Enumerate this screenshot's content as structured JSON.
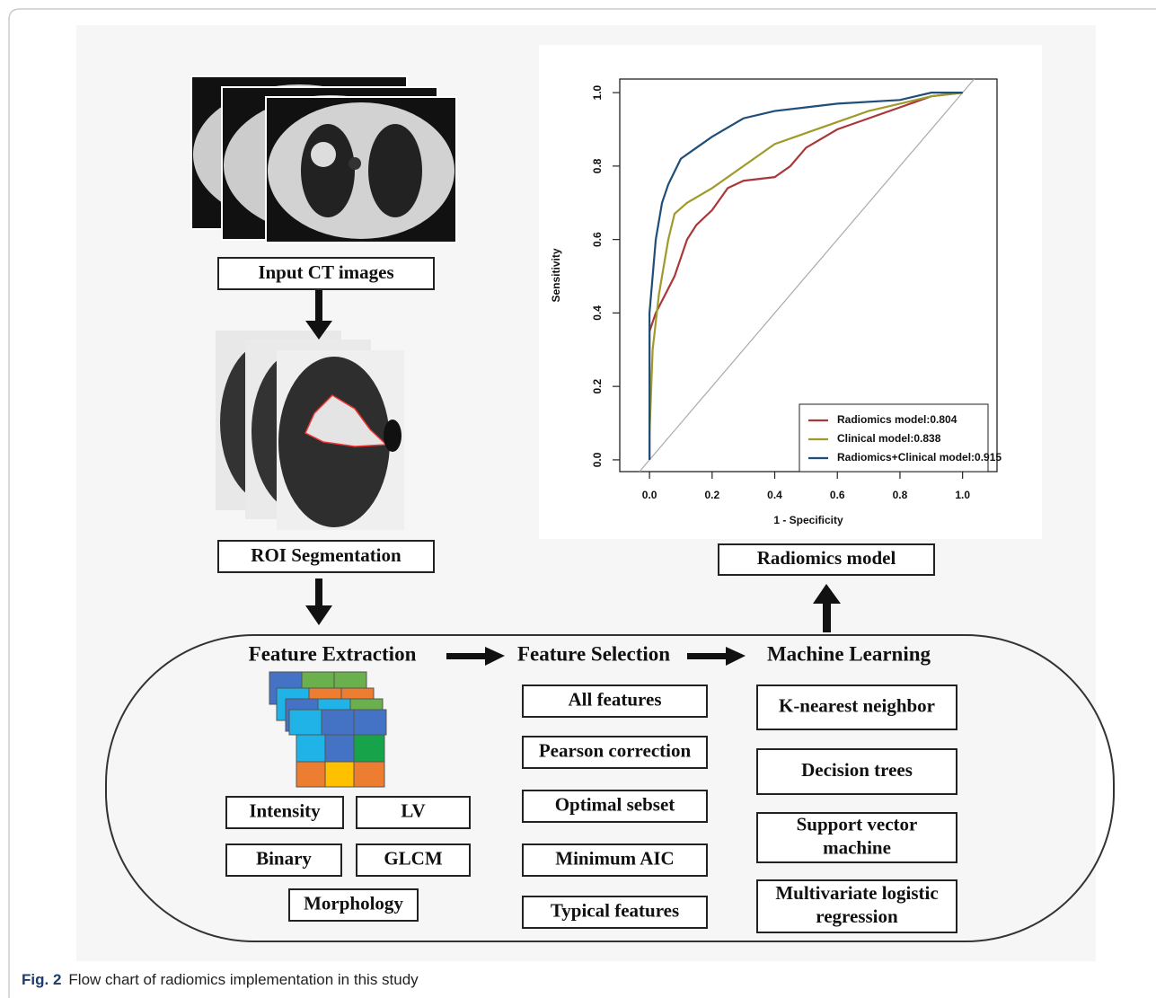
{
  "steps": {
    "input": "Input CT images",
    "roi": "ROI Segmentation",
    "model": "Radiomics model"
  },
  "feature_extraction": {
    "title": "Feature Extraction",
    "items": [
      "Intensity",
      "LV",
      "Binary",
      "GLCM",
      "Morphology"
    ]
  },
  "feature_selection": {
    "title": "Feature Selection",
    "items": [
      "All features",
      "Pearson correction",
      "Optimal sebset",
      "Minimum AIC",
      "Typical features"
    ]
  },
  "machine_learning": {
    "title": "Machine Learning",
    "items": [
      [
        "K-nearest neighbor"
      ],
      [
        "Decision trees"
      ],
      [
        "Support vector",
        "machine"
      ],
      [
        "Multivariate logistic",
        "regression"
      ]
    ]
  },
  "roc_chart": {
    "type": "line",
    "x_label": "1 - Specificity",
    "y_label": "Sensitivity",
    "xlim": [
      -0.095,
      1.11
    ],
    "ylim": [
      -0.032,
      1.037
    ],
    "xticks": [
      {
        "value": 0,
        "label": "0.0"
      },
      0.2,
      0.4,
      0.6,
      0.8,
      {
        "value": 1,
        "label": "1.0"
      }
    ],
    "yticks": [
      {
        "value": 0,
        "label": "0.0"
      },
      0.2,
      0.4,
      0.6,
      0.8,
      {
        "value": 1,
        "label": "1.0"
      }
    ],
    "series": [
      {
        "name": "Radiomics model:0.804",
        "color": "#a8393a",
        "x": [
          0,
          0,
          0.02,
          0.05,
          0.08,
          0.1,
          0.12,
          0.15,
          0.2,
          0.25,
          0.3,
          0.4,
          0.45,
          0.5,
          0.6,
          0.7,
          0.8,
          0.9,
          1
        ],
        "values": [
          0,
          0.35,
          0.4,
          0.45,
          0.5,
          0.55,
          0.6,
          0.64,
          0.68,
          0.74,
          0.76,
          0.77,
          0.8,
          0.85,
          0.9,
          0.93,
          0.96,
          0.99,
          1
        ]
      },
      {
        "name": "Clinical model:0.838",
        "color": "#a09a2a",
        "x": [
          0,
          0.01,
          0.03,
          0.06,
          0.08,
          0.12,
          0.2,
          0.3,
          0.4,
          0.5,
          0.6,
          0.7,
          0.8,
          0.9,
          1
        ],
        "values": [
          0.07,
          0.3,
          0.45,
          0.6,
          0.67,
          0.7,
          0.74,
          0.8,
          0.86,
          0.89,
          0.92,
          0.95,
          0.97,
          0.99,
          1
        ]
      },
      {
        "name": "Radiomics+Clinical model:0.915",
        "color": "#1f4e79",
        "x": [
          0,
          0,
          0.02,
          0.04,
          0.06,
          0.1,
          0.15,
          0.2,
          0.3,
          0.4,
          0.5,
          0.6,
          0.8,
          0.9,
          1
        ],
        "values": [
          0,
          0.4,
          0.6,
          0.7,
          0.75,
          0.82,
          0.85,
          0.88,
          0.93,
          0.95,
          0.96,
          0.97,
          0.98,
          1,
          1
        ]
      }
    ]
  },
  "caption": {
    "label": "Fig. 2",
    "text": "Flow chart of radiomics implementation in this study"
  }
}
